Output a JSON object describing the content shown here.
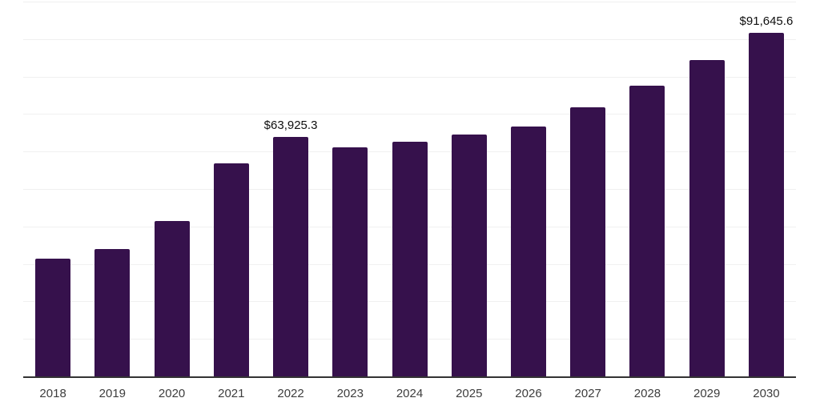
{
  "chart_data": {
    "type": "bar",
    "title": "",
    "xlabel": "",
    "ylabel": "",
    "categories": [
      "2018",
      "2019",
      "2020",
      "2021",
      "2022",
      "2023",
      "2024",
      "2025",
      "2026",
      "2027",
      "2028",
      "2029",
      "2030"
    ],
    "values": [
      31500,
      33900,
      41400,
      56900,
      63925.3,
      61200,
      62600,
      64500,
      66700,
      71700,
      77600,
      84300,
      91645.6
    ],
    "data_labels": {
      "2022": "$63,925.3",
      "2030": "$91,645.6"
    },
    "ylim": [
      0,
      100000
    ],
    "gridline_interval": 10000,
    "grid": true,
    "legend": false
  },
  "colors": {
    "background": "#ffffff",
    "bar": "#36114c",
    "axis": "#333333",
    "gridline": "#f0f0f0",
    "tick_label": "#3d3d3d",
    "data_label": "#0f0f0f"
  }
}
